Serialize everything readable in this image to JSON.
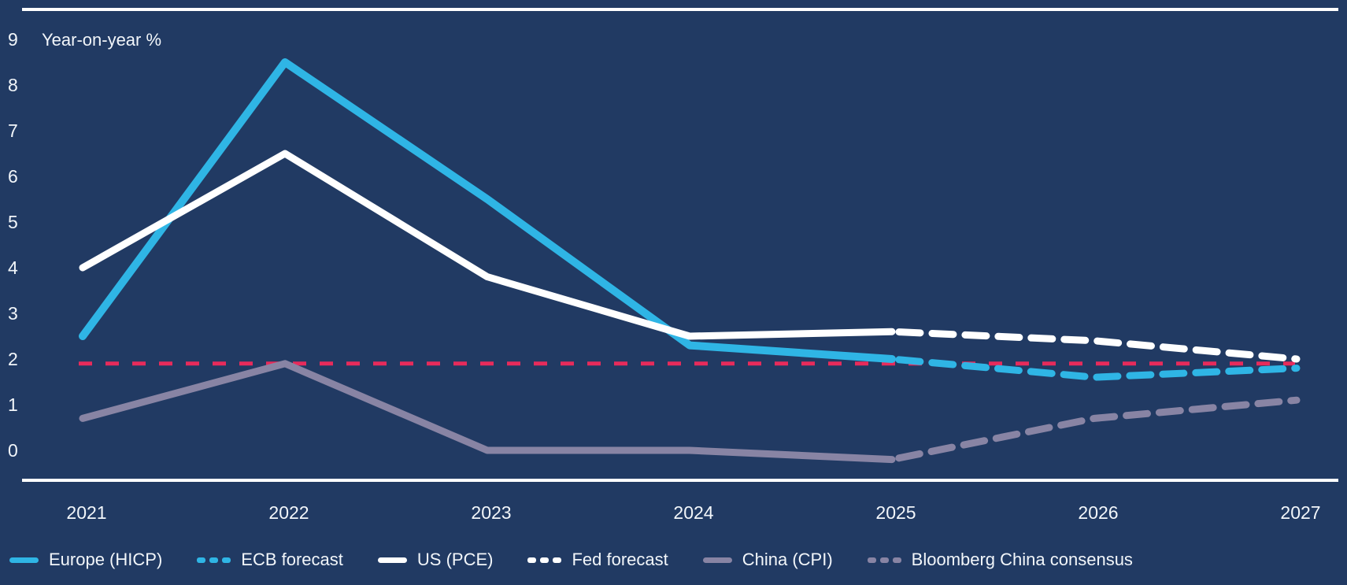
{
  "colors": {
    "background": "#213A63",
    "axis_line": "#FFFFFF",
    "text": "#F2F6FA",
    "europe": "#2FB5E5",
    "us": "#FFFFFF",
    "china": "#8884A4",
    "target_line": "#E72B5B"
  },
  "chart_data": {
    "type": "line",
    "title": "",
    "unit_label": "Year-on-year %",
    "xlabel": "",
    "ylabel": "Year-on-year %",
    "x_ticks": [
      2021,
      2022,
      2023,
      2024,
      2025,
      2026,
      2027
    ],
    "y_ticks": [
      0,
      1,
      2,
      3,
      4,
      5,
      6,
      7,
      8,
      9
    ],
    "ylim": [
      -0.65,
      9.65
    ],
    "grid": false,
    "legend_position": "bottom",
    "series": [
      {
        "id": "europe-hicp",
        "name": "Europe (HICP)",
        "style": "solid",
        "color": "#2FB5E5",
        "width": 10,
        "x": [
          2021,
          2022,
          2023,
          2024,
          2025
        ],
        "values": [
          2.5,
          8.5,
          5.5,
          2.3,
          2.0
        ]
      },
      {
        "id": "ecb-forecast",
        "name": "ECB forecast",
        "style": "dashed",
        "color": "#2FB5E5",
        "width": 9,
        "x": [
          2025,
          2026,
          2027
        ],
        "values": [
          2.0,
          1.6,
          1.8
        ]
      },
      {
        "id": "us-pce",
        "name": "US (PCE)",
        "style": "solid",
        "color": "#FFFFFF",
        "width": 9,
        "x": [
          2021,
          2022,
          2023,
          2024,
          2025
        ],
        "values": [
          4.0,
          6.5,
          3.8,
          2.5,
          2.6
        ]
      },
      {
        "id": "fed-forecast",
        "name": "Fed forecast",
        "style": "dashed",
        "color": "#FFFFFF",
        "width": 9,
        "x": [
          2025,
          2026,
          2027
        ],
        "values": [
          2.6,
          2.4,
          2.0
        ]
      },
      {
        "id": "china-cpi",
        "name": "China (CPI)",
        "style": "solid",
        "color": "#8884A4",
        "width": 9,
        "x": [
          2021,
          2022,
          2023,
          2024,
          2025
        ],
        "values": [
          0.7,
          1.9,
          0.0,
          0.0,
          -0.2
        ]
      },
      {
        "id": "bloomberg-china-consensus",
        "name": "Bloomberg China consensus",
        "style": "dashed",
        "color": "#8884A4",
        "width": 9,
        "x": [
          2025,
          2026,
          2027
        ],
        "values": [
          -0.2,
          0.7,
          1.1
        ]
      }
    ],
    "reference_line": {
      "value": 1.9,
      "color": "#E72B5B",
      "style": "dashed"
    }
  }
}
